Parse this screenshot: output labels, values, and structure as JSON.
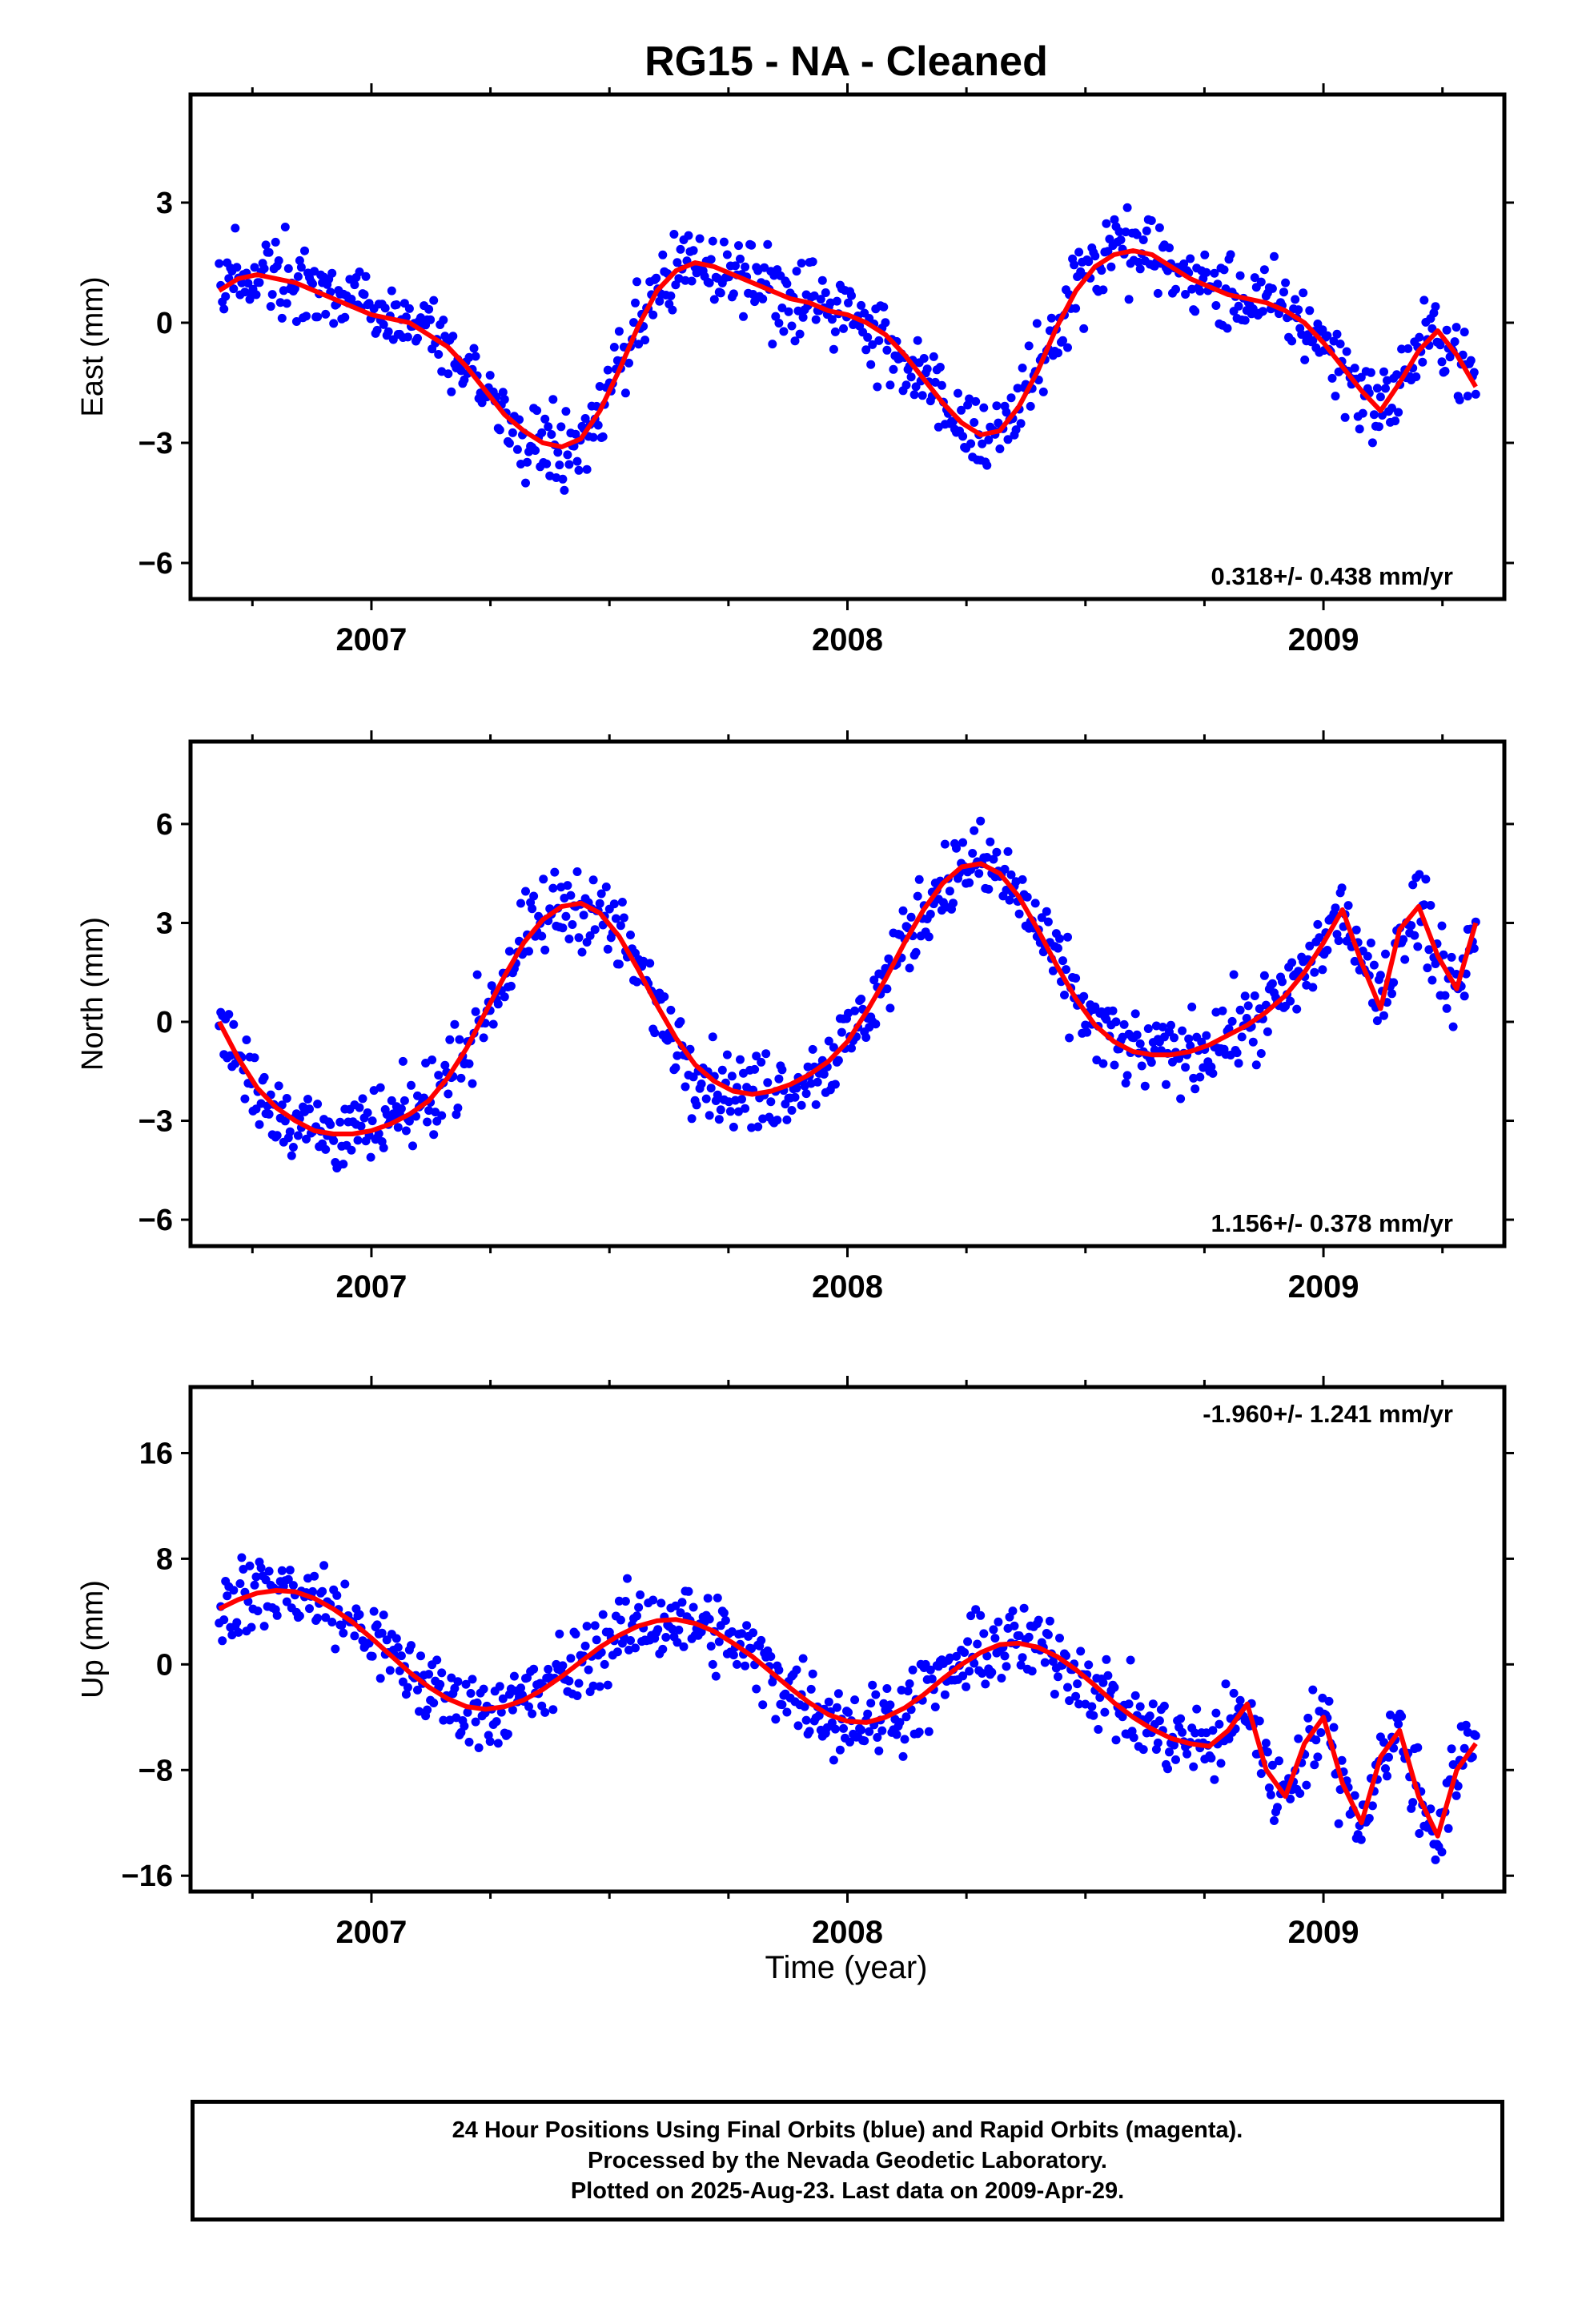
{
  "title": "RG15  - NA - Cleaned",
  "xlabel": "Time (year)",
  "footer": {
    "line1": "24 Hour Positions Using Final Orbits (blue) and Rapid Orbits (magenta).",
    "line2": "Processed by the Nevada Geodetic Laboratory.",
    "line3": "Plotted on 2025-Aug-23. Last data on 2009-Apr-29."
  },
  "colors": {
    "final_orbits": "#0000ff",
    "model_fit": "#ff0000",
    "frame": "#000000"
  },
  "chart_data": [
    {
      "type": "scatter",
      "ylabel": "East (mm)",
      "xlim": [
        2006.62,
        2009.38
      ],
      "ylim": [
        -6.9,
        5.7
      ],
      "yticks": [
        3,
        0,
        -3,
        -6
      ],
      "xticks": [
        2007,
        2008,
        2009
      ],
      "rate_label": "0.318+/- 0.438 mm/yr",
      "series": [
        {
          "x": [
            2006.68,
            2006.72,
            2006.76,
            2006.8,
            2006.84,
            2006.88,
            2006.92,
            2006.96,
            2007.0,
            2007.04,
            2007.08,
            2007.12,
            2007.16,
            2007.2,
            2007.24,
            2007.28,
            2007.32,
            2007.36,
            2007.4,
            2007.44,
            2007.48,
            2007.52,
            2007.56,
            2007.6,
            2007.64,
            2007.68,
            2007.72,
            2007.76,
            2007.8,
            2007.84,
            2007.88,
            2007.92,
            2007.96,
            2008.0,
            2008.04,
            2008.08,
            2008.12,
            2008.16,
            2008.2,
            2008.24,
            2008.28,
            2008.32,
            2008.36,
            2008.4,
            2008.44,
            2008.48,
            2008.52,
            2008.56,
            2008.6,
            2008.64,
            2008.68,
            2008.72,
            2008.76,
            2008.8,
            2008.84,
            2008.88,
            2008.92,
            2008.96,
            2009.0,
            2009.04,
            2009.08,
            2009.12,
            2009.16,
            2009.2,
            2009.24,
            2009.28,
            2009.32
          ],
          "y": [
            0.8,
            1.1,
            1.2,
            1.1,
            1.0,
            0.8,
            0.6,
            0.4,
            0.2,
            0.1,
            0.0,
            -0.3,
            -0.6,
            -1.1,
            -1.7,
            -2.3,
            -2.7,
            -3.0,
            -3.1,
            -2.9,
            -2.2,
            -1.2,
            -0.1,
            0.8,
            1.3,
            1.5,
            1.4,
            1.2,
            1.0,
            0.8,
            0.6,
            0.5,
            0.3,
            0.2,
            0.0,
            -0.3,
            -0.8,
            -1.4,
            -2.0,
            -2.5,
            -2.8,
            -2.7,
            -2.1,
            -1.2,
            -0.1,
            0.8,
            1.4,
            1.7,
            1.8,
            1.7,
            1.4,
            1.1,
            0.9,
            0.7,
            0.6,
            0.5,
            0.3,
            0.0,
            -0.5,
            -1.1,
            -1.7,
            -2.2,
            -1.5,
            -0.7,
            -0.2,
            -0.8,
            -1.6
          ]
        }
      ]
    },
    {
      "type": "scatter",
      "ylabel": "North (mm)",
      "xlim": [
        2006.62,
        2009.38
      ],
      "ylim": [
        -6.8,
        8.5
      ],
      "yticks": [
        6,
        3,
        0,
        -3,
        -6
      ],
      "xticks": [
        2007,
        2008,
        2009
      ],
      "rate_label": "1.156+/- 0.378 mm/yr",
      "series": [
        {
          "x": [
            2006.68,
            2006.72,
            2006.76,
            2006.8,
            2006.84,
            2006.88,
            2006.92,
            2006.96,
            2007.0,
            2007.04,
            2007.08,
            2007.12,
            2007.16,
            2007.2,
            2007.24,
            2007.28,
            2007.32,
            2007.36,
            2007.4,
            2007.44,
            2007.48,
            2007.52,
            2007.56,
            2007.6,
            2007.64,
            2007.68,
            2007.72,
            2007.76,
            2007.8,
            2007.84,
            2007.88,
            2007.92,
            2007.96,
            2008.0,
            2008.04,
            2008.08,
            2008.12,
            2008.16,
            2008.2,
            2008.24,
            2008.28,
            2008.32,
            2008.36,
            2008.4,
            2008.44,
            2008.48,
            2008.52,
            2008.56,
            2008.6,
            2008.64,
            2008.68,
            2008.72,
            2008.76,
            2008.8,
            2008.84,
            2008.88,
            2008.92,
            2008.96,
            2009.0,
            2009.04,
            2009.08,
            2009.12,
            2009.16,
            2009.2,
            2009.24,
            2009.28,
            2009.32
          ],
          "y": [
            0.0,
            -1.1,
            -2.0,
            -2.6,
            -3.0,
            -3.3,
            -3.4,
            -3.4,
            -3.3,
            -3.1,
            -2.8,
            -2.4,
            -1.7,
            -0.8,
            0.3,
            1.4,
            2.4,
            3.1,
            3.5,
            3.6,
            3.3,
            2.6,
            1.6,
            0.5,
            -0.5,
            -1.3,
            -1.8,
            -2.1,
            -2.2,
            -2.1,
            -1.9,
            -1.6,
            -1.2,
            -0.6,
            0.3,
            1.3,
            2.4,
            3.4,
            4.2,
            4.7,
            4.8,
            4.5,
            3.8,
            2.8,
            1.7,
            0.7,
            -0.1,
            -0.6,
            -0.9,
            -1.0,
            -1.0,
            -0.9,
            -0.7,
            -0.4,
            -0.1,
            0.3,
            0.8,
            1.5,
            2.4,
            3.4,
            1.8,
            0.4,
            2.8,
            3.5,
            2.0,
            1.0,
            3.0
          ]
        }
      ]
    },
    {
      "type": "scatter",
      "ylabel": "Up (mm)",
      "xlim": [
        2006.62,
        2009.38
      ],
      "ylim": [
        -17.2,
        21.0
      ],
      "yticks": [
        16,
        8,
        0,
        -8,
        -16
      ],
      "xticks": [
        2007,
        2008,
        2009
      ],
      "rate_label": "-1.960+/- 1.241 mm/yr",
      "series": [
        {
          "x": [
            2006.68,
            2006.72,
            2006.76,
            2006.8,
            2006.84,
            2006.88,
            2006.92,
            2006.96,
            2007.0,
            2007.04,
            2007.08,
            2007.12,
            2007.16,
            2007.2,
            2007.24,
            2007.28,
            2007.32,
            2007.36,
            2007.4,
            2007.44,
            2007.48,
            2007.52,
            2007.56,
            2007.6,
            2007.64,
            2007.68,
            2007.72,
            2007.76,
            2007.8,
            2007.84,
            2007.88,
            2007.92,
            2007.96,
            2008.0,
            2008.04,
            2008.08,
            2008.12,
            2008.16,
            2008.2,
            2008.24,
            2008.28,
            2008.32,
            2008.36,
            2008.4,
            2008.44,
            2008.48,
            2008.52,
            2008.56,
            2008.6,
            2008.64,
            2008.68,
            2008.72,
            2008.76,
            2008.8,
            2008.84,
            2008.88,
            2008.92,
            2008.96,
            2009.0,
            2009.04,
            2009.08,
            2009.12,
            2009.16,
            2009.2,
            2009.24,
            2009.28,
            2009.32
          ],
          "y": [
            4.2,
            4.9,
            5.4,
            5.6,
            5.5,
            5.0,
            4.2,
            3.2,
            2.0,
            0.7,
            -0.6,
            -1.7,
            -2.6,
            -3.2,
            -3.4,
            -3.2,
            -2.7,
            -1.9,
            -0.9,
            0.2,
            1.3,
            2.2,
            2.9,
            3.3,
            3.4,
            3.1,
            2.5,
            1.6,
            0.6,
            -0.6,
            -1.8,
            -2.9,
            -3.8,
            -4.3,
            -4.4,
            -4.0,
            -3.3,
            -2.3,
            -1.1,
            0.0,
            0.9,
            1.5,
            1.6,
            1.3,
            0.6,
            -0.4,
            -1.6,
            -2.9,
            -4.0,
            -4.9,
            -5.6,
            -6.0,
            -6.2,
            -5.0,
            -3.0,
            -8.0,
            -10.0,
            -6.0,
            -4.0,
            -9.0,
            -12.0,
            -7.0,
            -5.0,
            -10.0,
            -13.0,
            -8.0,
            -6.0
          ]
        }
      ]
    }
  ]
}
